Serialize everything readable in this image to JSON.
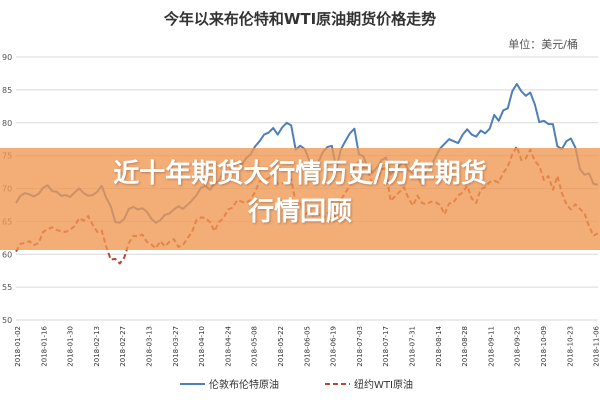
{
  "overlay": {
    "line1": "近十年期货大行情历史/历年期货",
    "line2": "行情回顾"
  },
  "colors": {
    "brent": "#4f7fb8",
    "wti": "#b84a3a",
    "overlay_band": "#f0964f"
  },
  "chart_data": {
    "type": "line",
    "title": "今年以来布伦特和WTI原油期货价格走势",
    "unit_label": "单位：美元/桶",
    "ylim": [
      50,
      90
    ],
    "y_ticks": [
      "90",
      "85",
      "80",
      "75",
      "70",
      "65",
      "60",
      "55",
      "50"
    ],
    "x_ticks": [
      "2018-01-02",
      "2018-01-16",
      "2018-01-30",
      "2018-02-13",
      "2018-02-27",
      "2018-03-13",
      "2018-03-27",
      "2018-04-10",
      "2018-04-24",
      "2018-05-08",
      "2018-05-22",
      "2018-06-05",
      "2018-06-19",
      "2018-07-03",
      "2018-07-17",
      "2018-07-31",
      "2018-08-14",
      "2018-08-28",
      "2018-09-11",
      "2018-09-25",
      "2018-10-09",
      "2018-10-23",
      "2018-11-06"
    ],
    "grid": true,
    "legend": "bottom",
    "series": [
      {
        "name": "伦敦布伦特原油",
        "values": [
          67.8,
          68.9,
          69.3,
          69.1,
          68.8,
          69.2,
          70.1,
          70.5,
          69.6,
          69.5,
          68.9,
          69.0,
          68.7,
          69.4,
          70.0,
          69.3,
          68.9,
          69.0,
          69.5,
          70.4,
          68.6,
          67.3,
          64.9,
          64.8,
          65.4,
          66.9,
          67.2,
          66.8,
          67.0,
          66.5,
          65.4,
          64.8,
          65.2,
          66.0,
          66.2,
          66.8,
          67.3,
          66.9,
          67.5,
          68.2,
          69.0,
          70.1,
          70.4,
          69.8,
          70.8,
          71.1,
          73.0,
          72.4,
          73.5,
          74.1,
          73.6,
          74.6,
          75.2,
          76.4,
          77.2,
          78.2,
          78.5,
          79.2,
          78.2,
          79.3,
          80.0,
          79.6,
          75.9,
          76.5,
          76.0,
          74.3,
          73.4,
          74.0,
          75.5,
          76.3,
          76.5,
          73.0,
          75.9,
          77.2,
          78.4,
          79.1,
          75.2,
          74.9,
          73.1,
          72.4,
          73.2,
          74.3,
          74.7,
          72.1,
          72.8,
          73.5,
          74.2,
          72.7,
          72.3,
          71.8,
          70.5,
          72.6,
          73.4,
          74.8,
          76.1,
          76.8,
          77.5,
          77.2,
          76.9,
          78.2,
          79.0,
          78.2,
          77.9,
          78.8,
          78.4,
          79.1,
          81.2,
          80.3,
          81.9,
          82.2,
          84.8,
          85.9,
          84.8,
          84.1,
          84.6,
          82.8,
          80.1,
          80.3,
          79.8,
          79.8,
          76.4,
          76.0,
          77.2,
          77.6,
          76.2,
          72.9,
          72.1,
          72.3,
          70.7,
          70.6
        ]
      },
      {
        "name": "纽约WTI原油",
        "values": [
          60.4,
          61.6,
          61.7,
          62.0,
          61.4,
          61.7,
          63.4,
          63.8,
          64.1,
          63.7,
          63.5,
          63.4,
          63.7,
          64.3,
          65.5,
          65.1,
          65.8,
          64.5,
          63.4,
          63.6,
          61.2,
          59.2,
          59.3,
          58.6,
          59.5,
          61.7,
          62.8,
          62.7,
          63.0,
          61.9,
          61.5,
          60.9,
          62.0,
          61.2,
          61.9,
          62.3,
          61.1,
          61.4,
          62.4,
          63.4,
          65.2,
          65.6,
          65.5,
          64.9,
          63.5,
          64.9,
          65.5,
          66.8,
          67.1,
          68.2,
          68.0,
          67.8,
          68.3,
          69.5,
          71.1,
          71.4,
          71.5,
          72.2,
          70.7,
          70.8,
          70.7,
          71.4,
          67.9,
          67.9,
          65.8,
          66.7,
          65.7,
          66.1,
          65.4,
          66.2,
          66.4,
          65.5,
          68.3,
          69.3,
          70.5,
          73.5,
          74.1,
          73.3,
          72.8,
          70.6,
          71.2,
          72.9,
          73.1,
          68.1,
          68.8,
          69.5,
          70.2,
          68.5,
          67.4,
          68.9,
          67.8,
          67.6,
          68.0,
          67.9,
          67.5,
          66.1,
          67.7,
          67.9,
          68.9,
          69.4,
          70.4,
          68.5,
          67.8,
          69.9,
          70.2,
          71.0,
          71.2,
          70.9,
          72.4,
          73.3,
          75.2,
          76.4,
          74.3,
          74.6,
          75.9,
          74.2,
          73.4,
          71.3,
          71.9,
          69.8,
          71.9,
          69.3,
          67.6,
          66.8,
          67.6,
          66.9,
          66.2,
          64.3,
          62.8,
          63.2
        ]
      }
    ]
  }
}
